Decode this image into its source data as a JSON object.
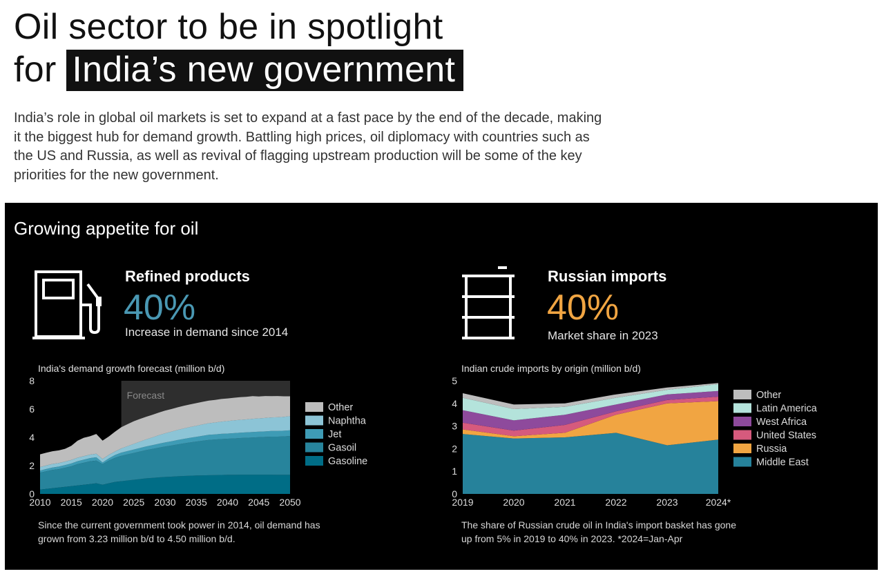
{
  "header": {
    "title_line1": "Oil sector to be in spotlight",
    "title_line2_prefix": "for",
    "title_line2_highlight": "India’s new government",
    "intro": "India’s role in global oil markets is set to expand at a fast pace by the end of the decade, making it the biggest hub for demand growth. Battling high prices, oil diplomacy with countries such as the US and Russia, as well as revival of flagging upstream production will be some of the key priorities for the new government."
  },
  "panel": {
    "title": "Growing appetite for oil",
    "left": {
      "icon": "fuel-pump-icon",
      "label": "Refined products",
      "value": "40%",
      "value_color": "#4a98b3",
      "sub": "Increase in demand since 2014",
      "note": "Since the current government took power in 2014, oil demand has grown from 3.23 million b/d to 4.50 million b/d."
    },
    "right": {
      "icon": "oil-barrel-icon",
      "label": "Russian imports",
      "value": "40%",
      "value_color": "#f1a542",
      "sub": "Market share in 2023",
      "note": "The share of Russian crude oil in India's import basket has gone up from 5% in 2019 to 40% in 2023. *2024=Jan-Apr"
    }
  },
  "chart_data": [
    {
      "type": "area",
      "stacked": true,
      "title": "India's demand growth forecast (million b/d)",
      "annotation": "Forecast",
      "forecast_start": 2023,
      "x": [
        2010,
        2011,
        2012,
        2013,
        2014,
        2015,
        2016,
        2017,
        2018,
        2019,
        2020,
        2021,
        2022,
        2023,
        2024,
        2025,
        2026,
        2027,
        2028,
        2029,
        2030,
        2031,
        2032,
        2033,
        2034,
        2035,
        2036,
        2037,
        2038,
        2039,
        2040,
        2041,
        2042,
        2043,
        2044,
        2045,
        2046,
        2047,
        2048,
        2049,
        2050
      ],
      "xticks": [
        "2010",
        "2015",
        "2020",
        "2025",
        "2030",
        "2035",
        "2040",
        "2045",
        "2050"
      ],
      "ylim": [
        0,
        8
      ],
      "yticks": [
        "0",
        "2",
        "4",
        "6",
        "8"
      ],
      "series": [
        {
          "name": "Gasoline",
          "color": "#006d86",
          "values": [
            0.3,
            0.35,
            0.4,
            0.45,
            0.5,
            0.55,
            0.6,
            0.65,
            0.7,
            0.75,
            0.65,
            0.75,
            0.85,
            0.9,
            0.95,
            1.0,
            1.05,
            1.1,
            1.13,
            1.17,
            1.2,
            1.22,
            1.25,
            1.27,
            1.29,
            1.3,
            1.31,
            1.32,
            1.33,
            1.34,
            1.35,
            1.35,
            1.36,
            1.36,
            1.36,
            1.36,
            1.36,
            1.36,
            1.35,
            1.35,
            1.35
          ]
        },
        {
          "name": "Gasoil",
          "color": "#27849c",
          "values": [
            1.2,
            1.25,
            1.3,
            1.3,
            1.35,
            1.4,
            1.5,
            1.55,
            1.6,
            1.6,
            1.45,
            1.6,
            1.7,
            1.8,
            1.85,
            1.9,
            1.95,
            2.0,
            2.05,
            2.1,
            2.15,
            2.2,
            2.25,
            2.3,
            2.35,
            2.4,
            2.45,
            2.5,
            2.52,
            2.54,
            2.55,
            2.57,
            2.59,
            2.61,
            2.63,
            2.65,
            2.67,
            2.69,
            2.7,
            2.72,
            2.75
          ]
        },
        {
          "name": "Jet",
          "color": "#3e9bb5",
          "values": [
            0.15,
            0.16,
            0.17,
            0.18,
            0.19,
            0.2,
            0.21,
            0.22,
            0.23,
            0.24,
            0.12,
            0.16,
            0.2,
            0.22,
            0.23,
            0.24,
            0.25,
            0.26,
            0.27,
            0.28,
            0.29,
            0.3,
            0.31,
            0.32,
            0.33,
            0.34,
            0.35,
            0.36,
            0.36,
            0.37,
            0.37,
            0.38,
            0.38,
            0.38,
            0.39,
            0.39,
            0.39,
            0.4,
            0.4,
            0.4,
            0.4
          ]
        },
        {
          "name": "Naphtha",
          "color": "#8cc4d6",
          "values": [
            0.25,
            0.25,
            0.25,
            0.25,
            0.25,
            0.25,
            0.25,
            0.25,
            0.25,
            0.25,
            0.25,
            0.25,
            0.25,
            0.3,
            0.35,
            0.4,
            0.45,
            0.5,
            0.55,
            0.6,
            0.65,
            0.68,
            0.71,
            0.74,
            0.76,
            0.78,
            0.8,
            0.82,
            0.84,
            0.86,
            0.88,
            0.9,
            0.91,
            0.92,
            0.93,
            0.94,
            0.95,
            0.96,
            0.97,
            0.98,
            1.0
          ]
        },
        {
          "name": "Other",
          "color": "#bdbdbd",
          "values": [
            0.9,
            0.9,
            0.9,
            0.9,
            0.9,
            1.0,
            1.2,
            1.3,
            1.3,
            1.4,
            1.3,
            1.3,
            1.4,
            1.5,
            1.55,
            1.6,
            1.6,
            1.6,
            1.6,
            1.6,
            1.6,
            1.6,
            1.6,
            1.6,
            1.6,
            1.6,
            1.6,
            1.6,
            1.6,
            1.6,
            1.6,
            1.6,
            1.6,
            1.6,
            1.6,
            1.55,
            1.55,
            1.5,
            1.5,
            1.45,
            1.4
          ]
        }
      ],
      "legend": "right"
    },
    {
      "type": "area",
      "stacked": true,
      "title": "Indian crude imports by origin (million b/d)",
      "categories": [
        "2019",
        "2020",
        "2021",
        "2022",
        "2023",
        "2024*"
      ],
      "ylim": [
        0,
        5
      ],
      "yticks": [
        "0",
        "1",
        "2",
        "3",
        "4",
        "5"
      ],
      "series": [
        {
          "name": "Middle East",
          "color": "#26829b",
          "values": [
            2.65,
            2.45,
            2.5,
            2.7,
            2.15,
            2.4
          ]
        },
        {
          "name": "Russia",
          "color": "#f1a542",
          "values": [
            0.2,
            0.1,
            0.2,
            0.8,
            1.85,
            1.7
          ]
        },
        {
          "name": "United States",
          "color": "#d65a7d",
          "values": [
            0.3,
            0.25,
            0.35,
            0.15,
            0.15,
            0.2
          ]
        },
        {
          "name": "West Africa",
          "color": "#8e4a9c",
          "values": [
            0.55,
            0.45,
            0.45,
            0.3,
            0.25,
            0.25
          ]
        },
        {
          "name": "Latin America",
          "color": "#b4e3db",
          "values": [
            0.55,
            0.5,
            0.35,
            0.3,
            0.2,
            0.3
          ]
        },
        {
          "name": "Other",
          "color": "#bdbdbd",
          "values": [
            0.2,
            0.2,
            0.15,
            0.15,
            0.1,
            0.05
          ]
        }
      ],
      "legend": "right"
    }
  ]
}
